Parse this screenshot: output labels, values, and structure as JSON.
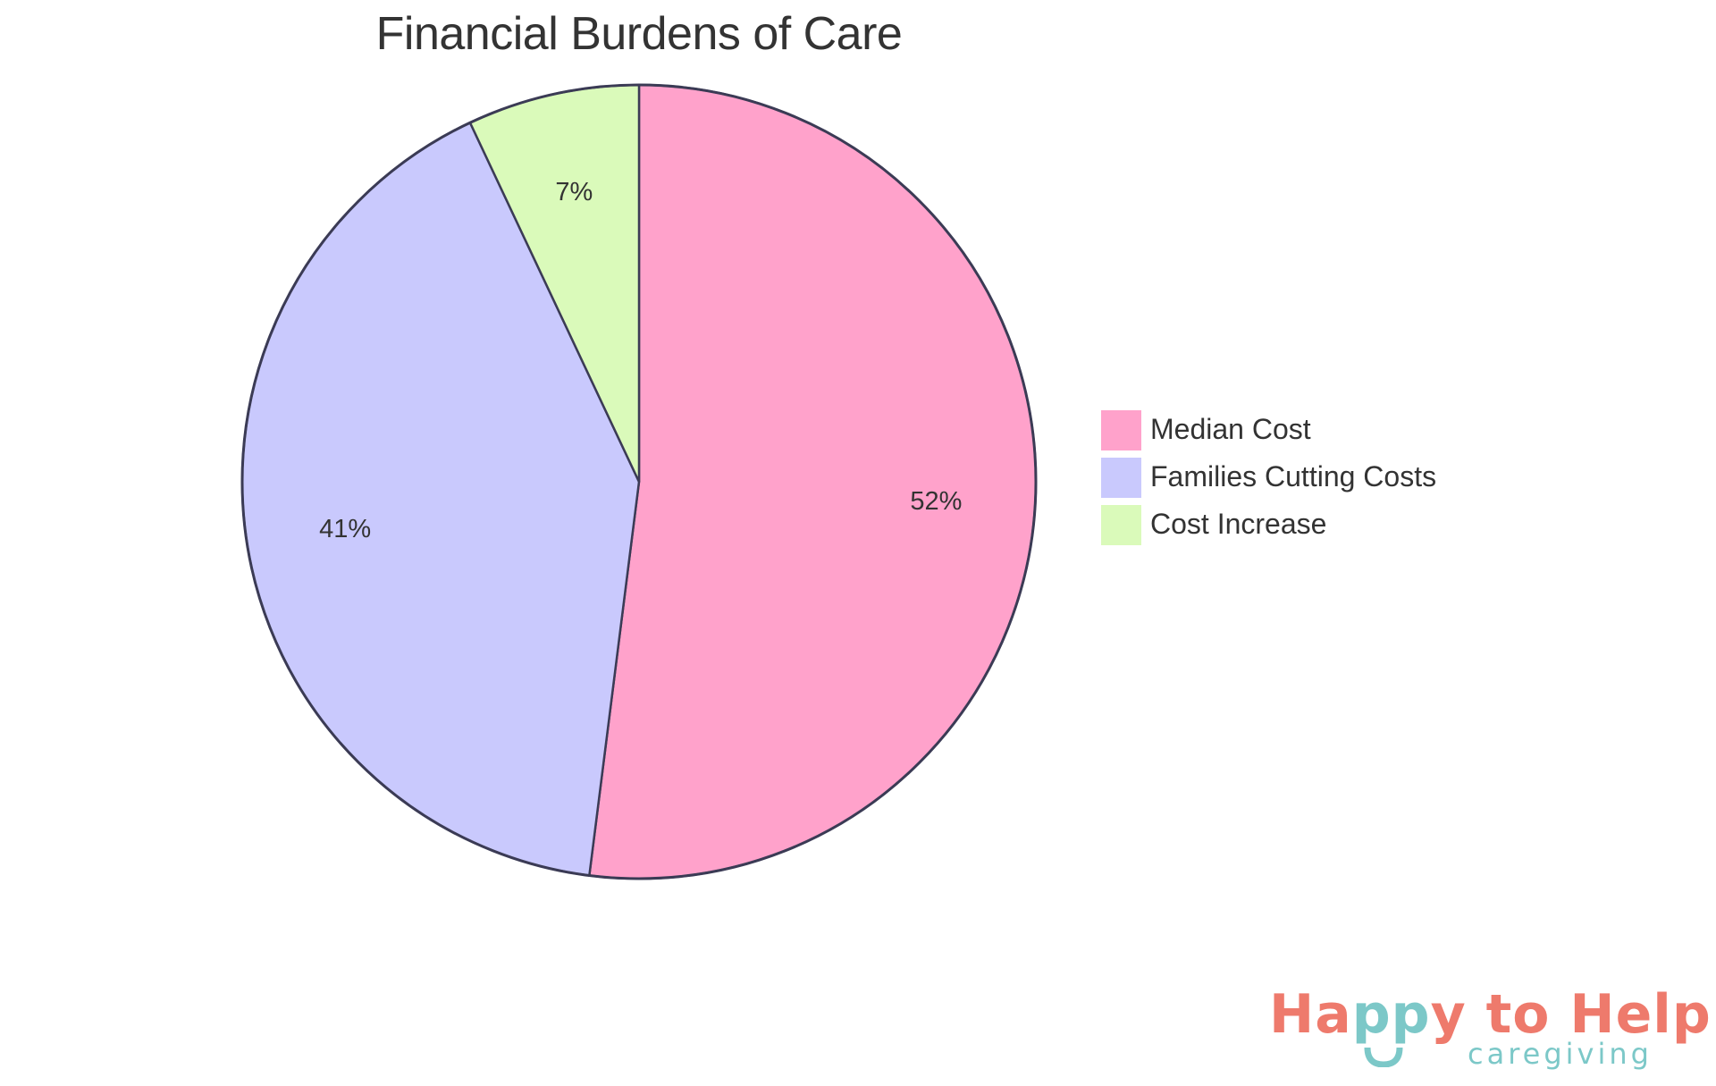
{
  "chart_data": {
    "type": "pie",
    "title": "Financial Burdens of Care",
    "categories": [
      "Median Cost",
      "Families Cutting Costs",
      "Cost Increase"
    ],
    "values": [
      52,
      41,
      7
    ],
    "labels": [
      "52%",
      "41%",
      "7%"
    ],
    "colors": [
      "#FFA2CB",
      "#C9C9FD",
      "#DAFABA"
    ],
    "stroke_color": "#3B3B55",
    "legend_position": "right",
    "start_angle_deg": 0,
    "direction": "clockwise"
  },
  "title": "Financial Burdens of Care",
  "legend": {
    "items": [
      {
        "label": "Median Cost",
        "color": "#FFA2CB"
      },
      {
        "label": "Families Cutting Costs",
        "color": "#C9C9FD"
      },
      {
        "label": "Cost Increase",
        "color": "#DAFABA"
      }
    ]
  },
  "logo": {
    "part1": "Ha",
    "part2": "pp",
    "part3": "y to Help",
    "subtitle": "caregiving",
    "primary_color": "#EE7A6C",
    "secondary_color": "#7CC8C8"
  }
}
